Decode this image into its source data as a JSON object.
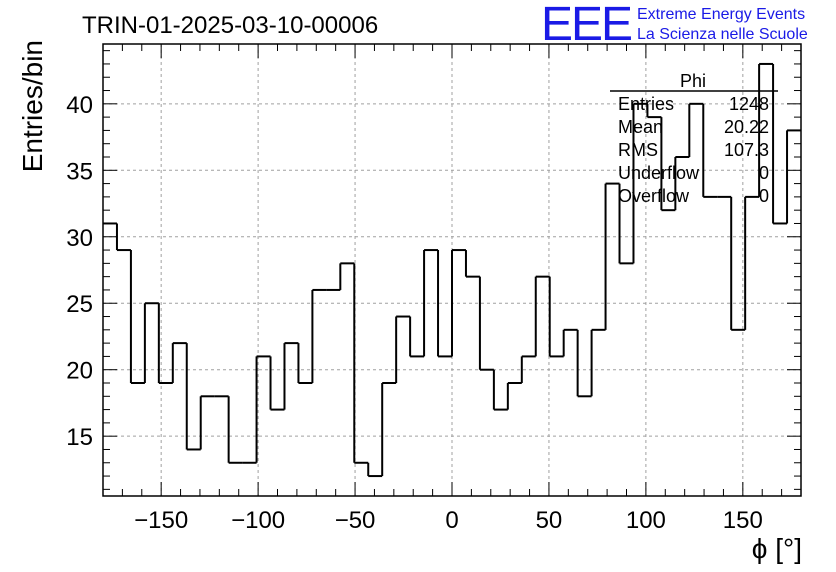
{
  "chart_data": {
    "type": "bar",
    "title": "TRIN-01-2025-03-10-00006",
    "xlabel": "ϕ [°]",
    "ylabel": "Entries/bin",
    "xlim": [
      -180,
      180
    ],
    "ylim": [
      10.5,
      44.5
    ],
    "bin_width": 7.2,
    "x_ticks": [
      -150,
      -100,
      -50,
      0,
      50,
      100,
      150
    ],
    "x_tick_labels": [
      "−150",
      "−100",
      "−50",
      "0",
      "50",
      "100",
      "150"
    ],
    "y_ticks": [
      15,
      20,
      25,
      30,
      35,
      40
    ],
    "y_tick_labels": [
      "15",
      "20",
      "25",
      "30",
      "35",
      "40"
    ],
    "grid": true,
    "values": [
      31,
      29,
      19,
      25,
      19,
      22,
      14,
      18,
      18,
      13,
      13,
      21,
      17,
      22,
      19,
      26,
      26,
      28,
      13,
      12,
      19,
      24,
      21,
      29,
      21,
      29,
      27,
      20,
      17,
      19,
      21,
      27,
      21,
      23,
      18,
      23,
      34,
      28,
      40,
      39,
      32,
      36,
      40,
      33,
      33,
      23,
      33,
      43,
      31,
      38
    ]
  },
  "stats_box": {
    "name": "Phi",
    "rows": [
      {
        "label": "Entries",
        "value": "1248"
      },
      {
        "label": "Mean",
        "value": "20.22"
      },
      {
        "label": "RMS",
        "value": "107.3"
      },
      {
        "label": "Underflow",
        "value": "0"
      },
      {
        "label": "Overflow",
        "value": "0"
      }
    ]
  },
  "logo": {
    "mark": "EEE",
    "line1": "Extreme Energy Events",
    "line2": "La Scienza nelle Scuole",
    "color": "#1a1ae6"
  }
}
